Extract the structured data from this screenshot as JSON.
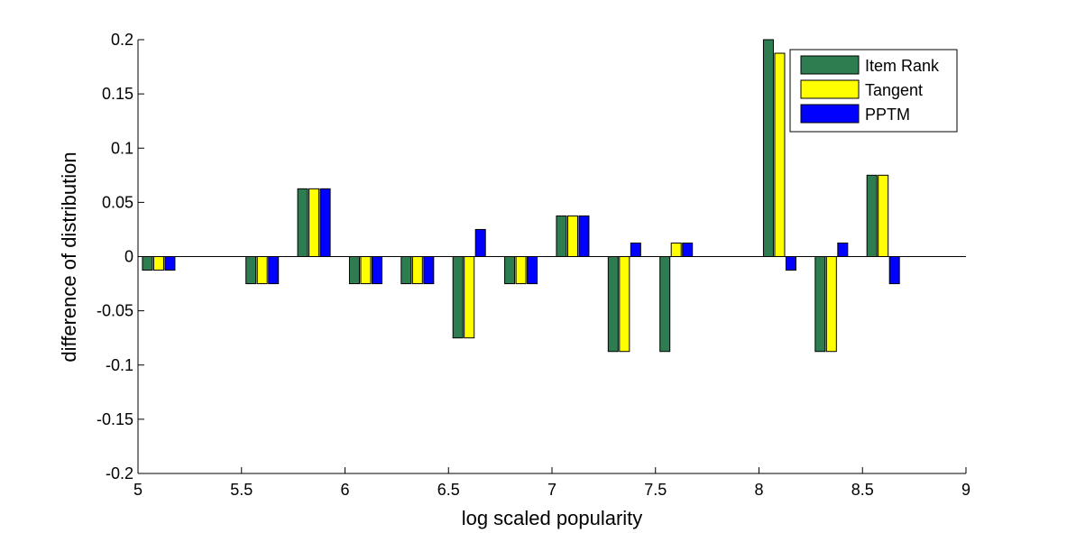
{
  "chart_data": {
    "type": "bar",
    "xlabel": "log scaled popularity",
    "ylabel": "difference of distribution",
    "xlim": [
      5,
      9
    ],
    "ylim": [
      -0.2,
      0.2
    ],
    "xticks": [
      "5",
      "5.5",
      "6",
      "6.5",
      "7",
      "7.5",
      "8",
      "8.5",
      "9"
    ],
    "yticks": [
      "-0.2",
      "-0.15",
      "-0.1",
      "-0.05",
      "0",
      "0.05",
      "0.1",
      "0.15",
      "0.2"
    ],
    "legend_position": "top-right",
    "grid": false,
    "bar_group_spacing": 0.25,
    "x": [
      5.1,
      5.6,
      5.85,
      6.1,
      6.35,
      6.6,
      6.85,
      7.1,
      7.35,
      7.6,
      7.85,
      8.1,
      8.35,
      8.6
    ],
    "series": [
      {
        "name": "Item Rank",
        "color": "#2e7d50",
        "values": [
          -0.0125,
          -0.025,
          0.0625,
          -0.025,
          -0.025,
          -0.075,
          -0.025,
          0.0375,
          -0.0875,
          -0.0875,
          0,
          0.2,
          -0.0875,
          0.075
        ]
      },
      {
        "name": "Tangent",
        "color": "#ffff00",
        "values": [
          -0.0125,
          -0.025,
          0.0625,
          -0.025,
          -0.025,
          -0.075,
          -0.025,
          0.0375,
          -0.0875,
          0.0125,
          0,
          0.1875,
          -0.0875,
          0.075
        ]
      },
      {
        "name": "PPTM",
        "color": "#0000ff",
        "values": [
          -0.0125,
          -0.025,
          0.0625,
          -0.025,
          -0.025,
          0.025,
          -0.025,
          0.0375,
          0.0125,
          0.0125,
          0,
          -0.0125,
          0.0125,
          -0.025
        ]
      }
    ]
  }
}
